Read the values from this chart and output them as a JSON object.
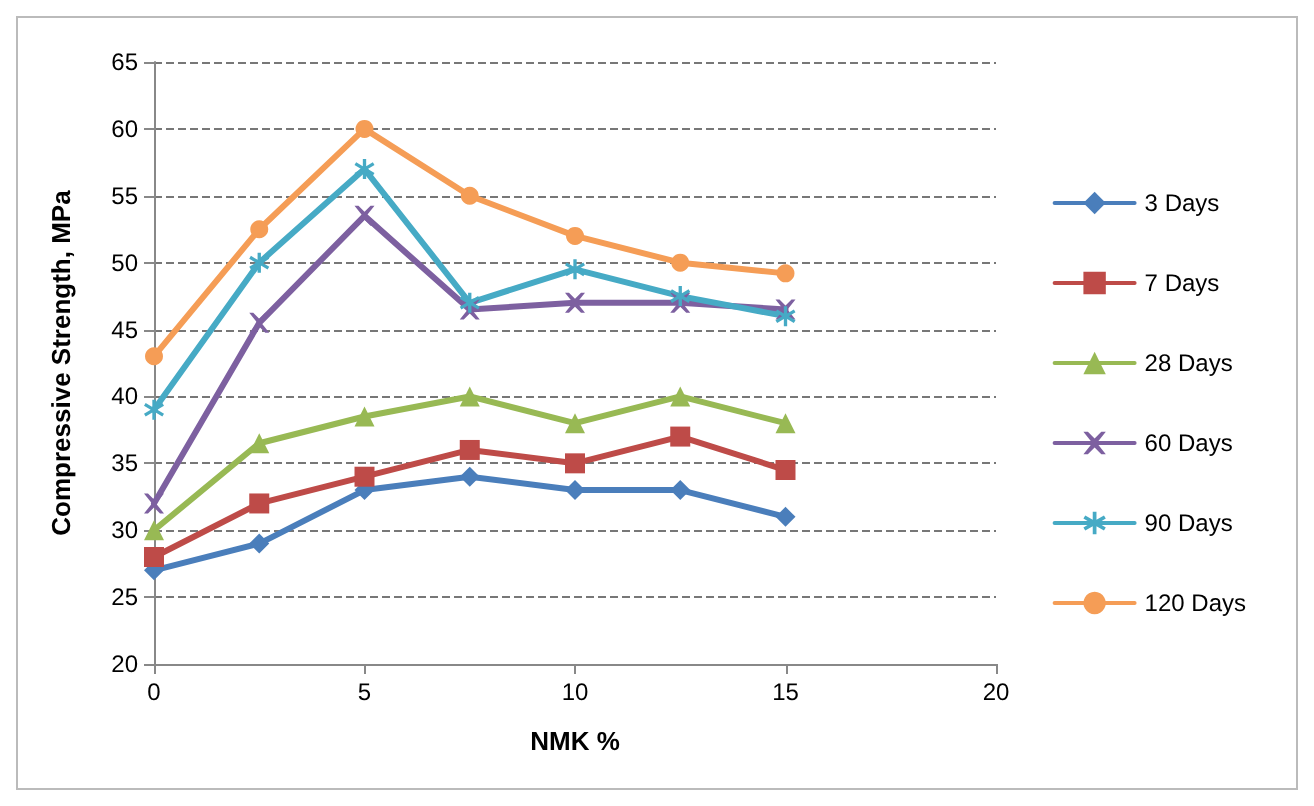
{
  "chart_data": {
    "type": "line",
    "xlabel": "NMK %",
    "ylabel": "Compressive Strength, MPa",
    "x": [
      0,
      2.5,
      5,
      7.5,
      10,
      12.5,
      15
    ],
    "xlim": [
      0,
      20
    ],
    "xticks": [
      0,
      5,
      10,
      15,
      20
    ],
    "ylim": [
      20,
      65
    ],
    "yticks": [
      20,
      25,
      30,
      35,
      40,
      45,
      50,
      55,
      60,
      65
    ],
    "grid": "y",
    "legend": "right",
    "line_style": "solid",
    "series": [
      {
        "name": "3 Days",
        "color": "#4a7ebb",
        "marker": "diamond",
        "values": [
          27,
          29,
          33,
          34,
          33,
          33,
          31
        ]
      },
      {
        "name": "7 Days",
        "color": "#be4b48",
        "marker": "square",
        "values": [
          28,
          32,
          34,
          36,
          35,
          37,
          34.5
        ]
      },
      {
        "name": "28 Days",
        "color": "#98b954",
        "marker": "triangle",
        "values": [
          30,
          36.5,
          38.5,
          40,
          38,
          40,
          38
        ]
      },
      {
        "name": "60 Days",
        "color": "#7d60a0",
        "marker": "cross",
        "values": [
          32,
          45.5,
          53.5,
          46.5,
          47,
          47,
          46.5
        ]
      },
      {
        "name": "90 Days",
        "color": "#46aac5",
        "marker": "star",
        "values": [
          39,
          50,
          57,
          47,
          49.5,
          47.5,
          46
        ]
      },
      {
        "name": "120 Days",
        "color": "#f59d56",
        "marker": "circle",
        "values": [
          43,
          52.5,
          60,
          55,
          52,
          50,
          49.2
        ]
      }
    ]
  }
}
